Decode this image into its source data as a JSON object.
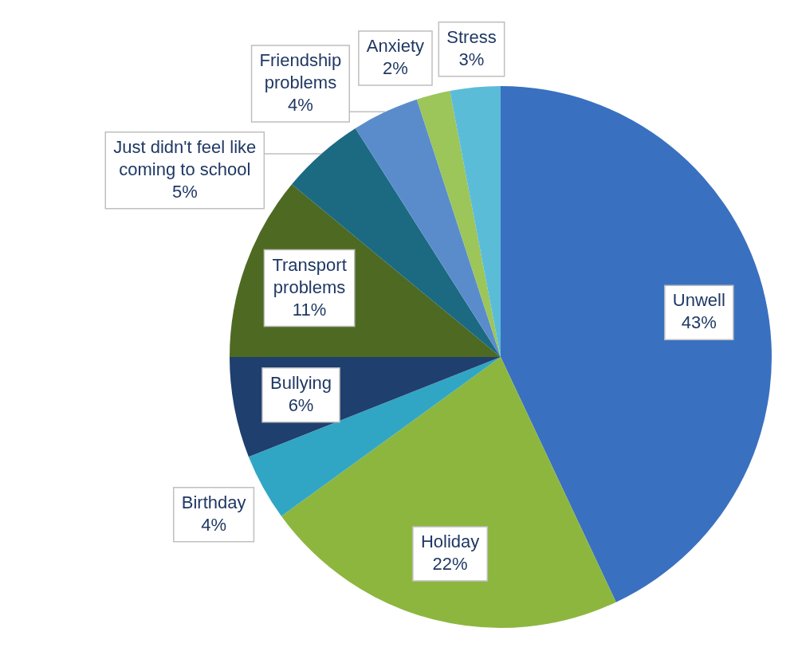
{
  "chart_data": {
    "type": "pie",
    "categories": [
      "Unwell",
      "Holiday",
      "Birthday",
      "Bullying",
      "Transport problems",
      "Just didn't feel like coming to school",
      "Friendship problems",
      "Anxiety",
      "Stress"
    ],
    "values": [
      43,
      22,
      4,
      6,
      11,
      5,
      4,
      2,
      3
    ],
    "value_labels": [
      "43%",
      "22%",
      "4%",
      "6%",
      "11%",
      "5%",
      "4%",
      "2%",
      "3%"
    ],
    "colors": [
      "#3a70c0",
      "#8db63f",
      "#31a6c4",
      "#1f3f6e",
      "#4e6a22",
      "#1b6a82",
      "#5a8ccc",
      "#9cc55a",
      "#5bbcd8"
    ],
    "legend": false
  }
}
